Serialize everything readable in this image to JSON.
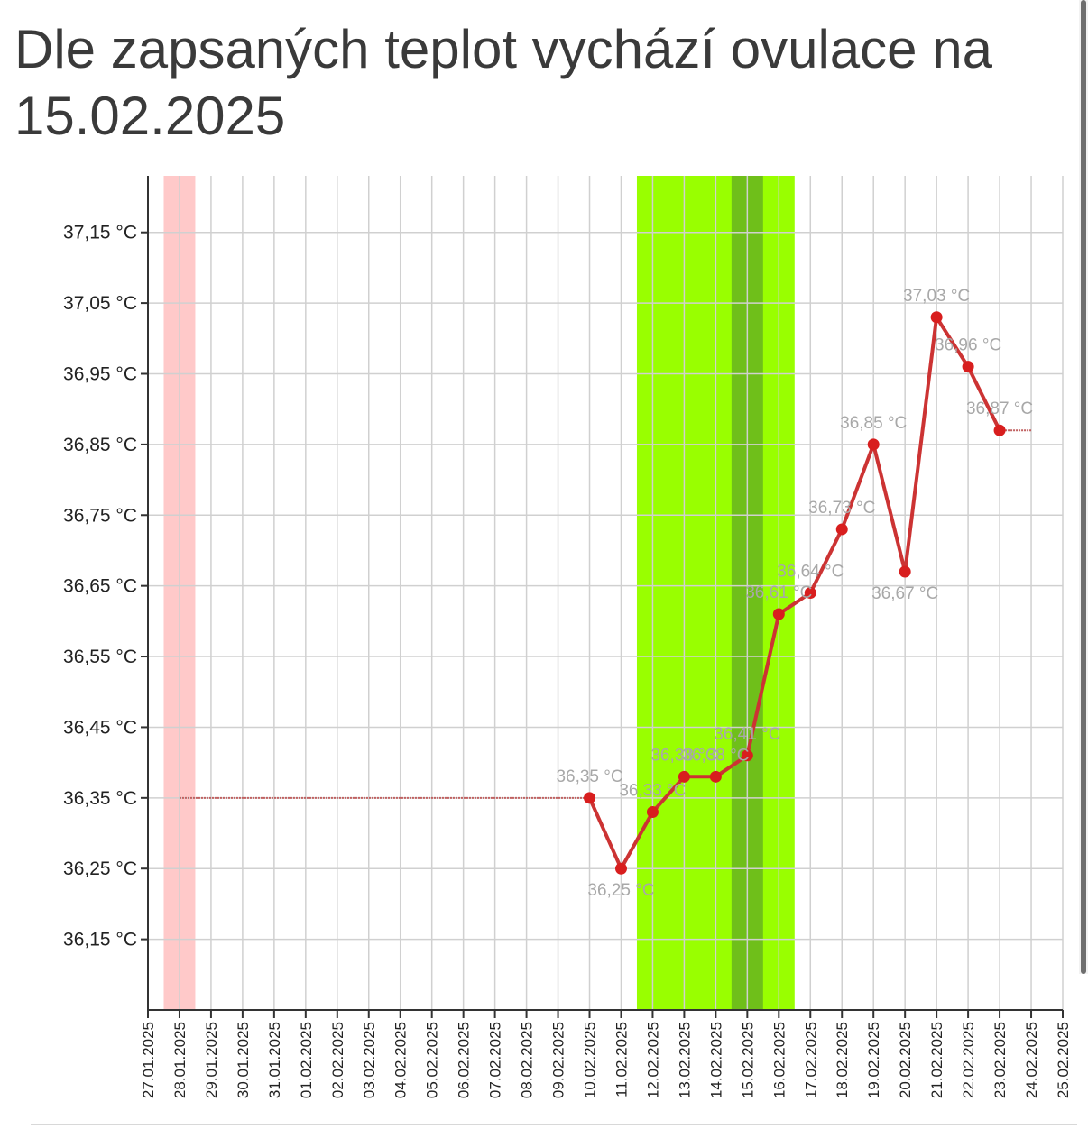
{
  "title": "Dle zapsaných teplot vychází ovulace na 15.02.2025",
  "chart_data": {
    "type": "line",
    "x_categories": [
      "27.01.2025",
      "28.01.2025",
      "29.01.2025",
      "30.01.2025",
      "31.01.2025",
      "01.02.2025",
      "02.02.2025",
      "03.02.2025",
      "04.02.2025",
      "05.02.2025",
      "06.02.2025",
      "07.02.2025",
      "08.02.2025",
      "09.02.2025",
      "10.02.2025",
      "11.02.2025",
      "12.02.2025",
      "13.02.2025",
      "14.02.2025",
      "15.02.2025",
      "16.02.2025",
      "17.02.2025",
      "18.02.2025",
      "19.02.2025",
      "20.02.2025",
      "21.02.2025",
      "22.02.2025",
      "23.02.2025",
      "24.02.2025",
      "25.02.2025"
    ],
    "y_ticks": [
      {
        "value": 37.15,
        "label": "37,15 °C"
      },
      {
        "value": 37.05,
        "label": "37,05 °C"
      },
      {
        "value": 36.95,
        "label": "36,95 °C"
      },
      {
        "value": 36.85,
        "label": "36,85 °C"
      },
      {
        "value": 36.75,
        "label": "36,75 °C"
      },
      {
        "value": 36.65,
        "label": "36,65 °C"
      },
      {
        "value": 36.55,
        "label": "36,55 °C"
      },
      {
        "value": 36.45,
        "label": "36,45 °C"
      },
      {
        "value": 36.35,
        "label": "36,35 °C"
      },
      {
        "value": 36.25,
        "label": "36,25 °C"
      },
      {
        "value": 36.15,
        "label": "36,15 °C"
      }
    ],
    "ylim": [
      36.05,
      37.23
    ],
    "series": [
      {
        "color": "#d81e1e",
        "points": [
          {
            "x": "10.02.2025",
            "y": 36.35,
            "label": "36,35 °C"
          },
          {
            "x": "11.02.2025",
            "y": 36.25,
            "label": "36,25 °C"
          },
          {
            "x": "12.02.2025",
            "y": 36.33,
            "label": "36,33 °C"
          },
          {
            "x": "13.02.2025",
            "y": 36.38,
            "label": "36,38 °C"
          },
          {
            "x": "14.02.2025",
            "y": 36.38,
            "label": "36,38 °C"
          },
          {
            "x": "15.02.2025",
            "y": 36.41,
            "label": "36,41 °C"
          },
          {
            "x": "16.02.2025",
            "y": 36.61,
            "label": "36,61 °C"
          },
          {
            "x": "17.02.2025",
            "y": 36.64,
            "label": "36,64 °C"
          },
          {
            "x": "18.02.2025",
            "y": 36.73,
            "label": "36,73 °C"
          },
          {
            "x": "19.02.2025",
            "y": 36.85,
            "label": "36,85 °C"
          },
          {
            "x": "20.02.2025",
            "y": 36.67,
            "label": "36,67 °C"
          },
          {
            "x": "21.02.2025",
            "y": 37.03,
            "label": "37,03 °C"
          },
          {
            "x": "22.02.2025",
            "y": 36.96,
            "label": "36,96 °C"
          },
          {
            "x": "23.02.2025",
            "y": 36.87,
            "label": "36,87 °C"
          }
        ]
      }
    ],
    "extension_lines": [
      {
        "from": "28.01.2025",
        "to": "10.02.2025",
        "y": 36.35
      },
      {
        "from": "23.02.2025",
        "to": "24.02.2025",
        "y": 36.87
      }
    ],
    "bands": [
      {
        "from": "27.01.2025",
        "to": "28.01.2025",
        "color": "#ffc9c9"
      },
      {
        "from": "11.02.2025",
        "to": "16.02.2025",
        "color": "#99ff00"
      },
      {
        "from": "14.02.2025",
        "to": "15.02.2025",
        "color": "#6fbf1a"
      }
    ],
    "grid": true
  }
}
